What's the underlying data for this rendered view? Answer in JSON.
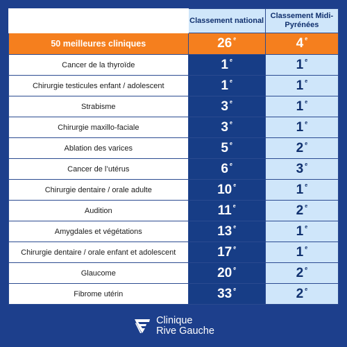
{
  "header": {
    "col_national": "Classement national",
    "col_regional": "Classement Midi-Pyrénées"
  },
  "summary": {
    "label": "50 meilleures cliniques",
    "national": "26",
    "regional": "4",
    "suffix": "e"
  },
  "rows": [
    {
      "label": "Cancer de la thyroïde",
      "national": "1",
      "regional": "1"
    },
    {
      "label": "Chirurgie testicules enfant / adolescent",
      "national": "1",
      "regional": "1"
    },
    {
      "label": "Strabisme",
      "national": "3",
      "regional": "1"
    },
    {
      "label": "Chirurgie maxillo-faciale",
      "national": "3",
      "regional": "1"
    },
    {
      "label": "Ablation des varices",
      "national": "5",
      "regional": "2"
    },
    {
      "label": "Cancer de l’utérus",
      "national": "6",
      "regional": "3"
    },
    {
      "label": "Chirurgie dentaire / orale adulte",
      "national": "10",
      "regional": "1"
    },
    {
      "label": "Audition",
      "national": "11",
      "regional": "2"
    },
    {
      "label": "Amygdales et végétations",
      "national": "13",
      "regional": "1"
    },
    {
      "label": "Chirurgie dentaire / orale enfant et adolescent",
      "national": "17",
      "regional": "1"
    },
    {
      "label": "Glaucome",
      "national": "20",
      "regional": "2"
    },
    {
      "label": "Fibrome utérin",
      "national": "33",
      "regional": "2"
    }
  ],
  "logo": {
    "line1": "Clinique",
    "line2": "Rive Gauche",
    "icon": "clinic-logo-icon",
    "color": "#ffffff"
  },
  "colors": {
    "background": "#1d3f8c",
    "national_cell": "#173d86",
    "regional_cell": "#cfe6fa",
    "summary_row": "#f57f1e"
  }
}
